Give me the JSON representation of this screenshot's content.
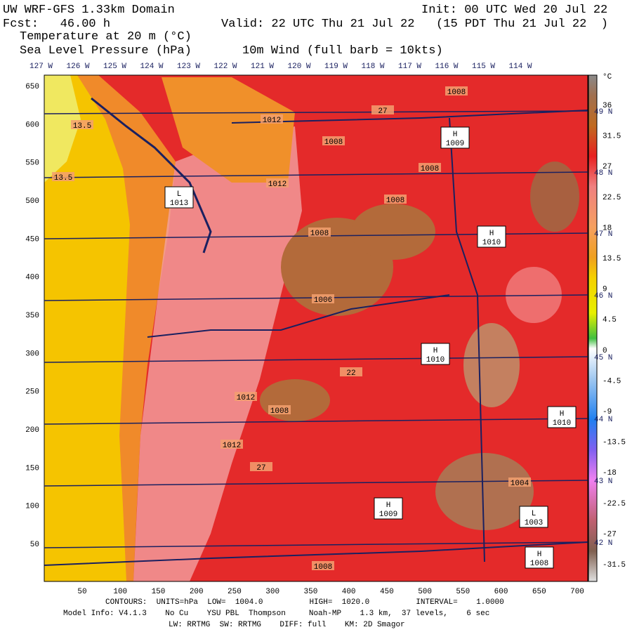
{
  "header": {
    "model": "UW WRF-GFS 1.33km Domain",
    "init": "Init: 00 UTC Wed 20 Jul 22",
    "forecast": "Fcst:   46.00 h",
    "valid": "Valid: 22 UTC Thu 21 Jul 22   (15 PDT Thu 21 Jul 22  )",
    "field1": "Temperature at 20 m (°C)",
    "field2": "Sea Level Pressure (hPa)",
    "field3": "10m Wind (full barb = 10kts)"
  },
  "longitudes": [
    "127 W",
    "126 W",
    "125 W",
    "124 W",
    "123 W",
    "122 W",
    "121 W",
    "120 W",
    "119 W",
    "118 W",
    "117 W",
    "116 W",
    "115 W",
    "114 W"
  ],
  "latitudes": [
    "49 N",
    "48 N",
    "47 N",
    "46 N",
    "45 N",
    "44 N",
    "43 N",
    "42 N"
  ],
  "x_ticks": [
    50,
    100,
    150,
    200,
    250,
    300,
    350,
    400,
    450,
    500,
    550,
    600,
    650,
    700
  ],
  "y_ticks": [
    50,
    100,
    150,
    200,
    250,
    300,
    350,
    400,
    450,
    500,
    550,
    600,
    650
  ],
  "colorbar": {
    "unit": "°C",
    "labels": [
      "36",
      "31.5",
      "27",
      "22.5",
      "18",
      "13.5",
      "9",
      "4.5",
      "0",
      "-4.5",
      "-9",
      "-13.5",
      "-18",
      "-22.5",
      "-27",
      "-31.5"
    ]
  },
  "pressure_centers": [
    {
      "kind": "H",
      "value": "1009"
    },
    {
      "kind": "L",
      "value": "1013"
    },
    {
      "kind": "H",
      "value": "1010"
    },
    {
      "kind": "H",
      "value": "1010"
    },
    {
      "kind": "H",
      "value": "1010"
    },
    {
      "kind": "H",
      "value": "1009"
    },
    {
      "kind": "L",
      "value": "1003"
    },
    {
      "kind": "H",
      "value": "1008"
    }
  ],
  "contour_labels": [
    "1012",
    "1008",
    "1008",
    "1008",
    "1008",
    "1006",
    "1012",
    "1012",
    "1008",
    "1012",
    "1004",
    "1008",
    "1008",
    "13.5",
    "13.5",
    "27",
    "27",
    "22"
  ],
  "footer": {
    "contours": "CONTOURS:  UNITS=hPa  LOW=  1004.0          HIGH=  1020.0          INTERVAL=    1.0000",
    "model_info": "Model Info: V4.1.3    No Cu    YSU PBL  Thompson     Noah-MP    1.3 km,  37 levels,    6 sec",
    "physics": "LW: RRTMG  SW: RRTMG    DIFF: full    KM: 2D Smagor"
  }
}
